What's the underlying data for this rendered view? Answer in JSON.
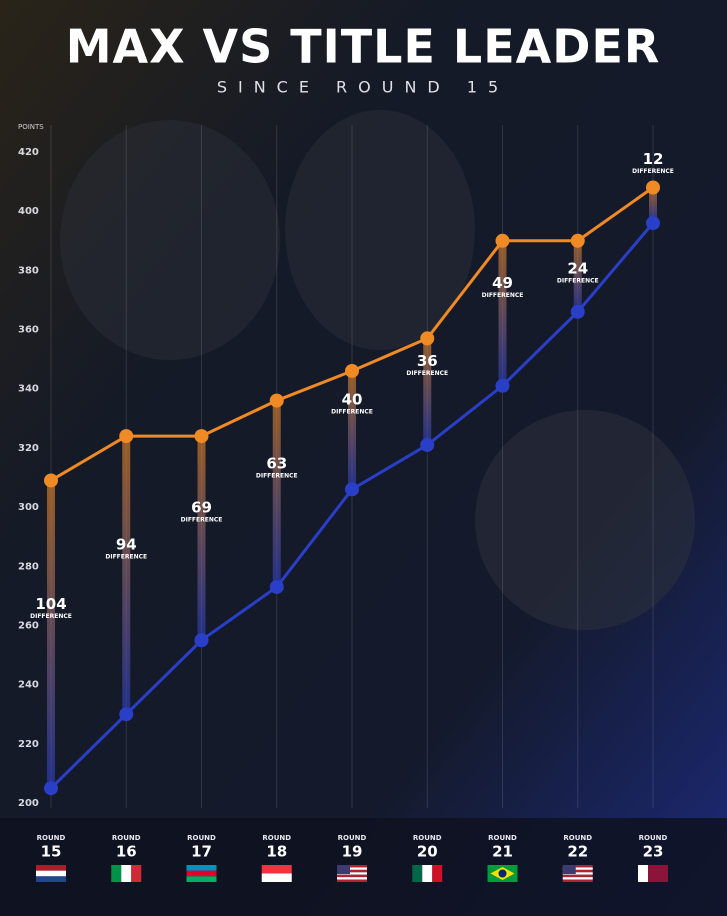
{
  "chart_data": {
    "type": "line",
    "title": "MAX VS TITLE LEADER",
    "subtitle": "SINCE ROUND 15",
    "y_label": "POINTS",
    "round_label": "ROUND",
    "difference_label": "DIFFERENCE",
    "categories": [
      "15",
      "16",
      "17",
      "18",
      "19",
      "20",
      "21",
      "22",
      "23"
    ],
    "series": [
      {
        "color": "#f08a24",
        "values": [
          309,
          324,
          324,
          336,
          346,
          357,
          390,
          390,
          408
        ]
      },
      {
        "color": "#2a3fc8",
        "values": [
          205,
          230,
          255,
          273,
          306,
          321,
          341,
          366,
          396
        ]
      }
    ],
    "differences": [
      104,
      94,
      69,
      63,
      40,
      36,
      49,
      24,
      12
    ],
    "ylim": [
      200,
      420
    ],
    "yticks": [
      200,
      220,
      240,
      260,
      280,
      300,
      320,
      340,
      360,
      380,
      400,
      420
    ],
    "grid": true
  }
}
